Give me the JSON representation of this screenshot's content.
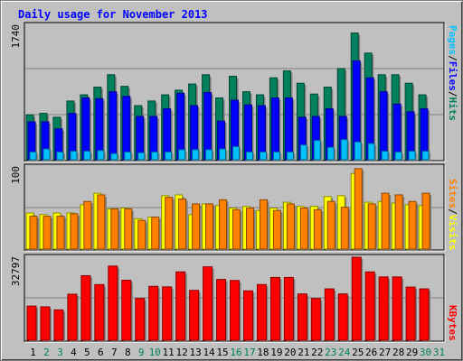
{
  "title": "Daily usage for November 2013",
  "colors": {
    "hits": "#00805c",
    "files": "#0000ff",
    "pages": "#00c0ff",
    "visits": "#ffff00",
    "sites": "#ff8000",
    "kbytes": "#ff0000",
    "weekday_label": "#000000",
    "weekend_label": "#00805c",
    "title": "#0000ff"
  },
  "chart_data": [
    {
      "type": "bar",
      "panel": "hits-files-pages",
      "categories": [
        "1",
        "2",
        "3",
        "4",
        "5",
        "6",
        "7",
        "8",
        "9",
        "10",
        "11",
        "12",
        "13",
        "14",
        "15",
        "16",
        "17",
        "18",
        "19",
        "20",
        "21",
        "22",
        "23",
        "24",
        "25",
        "26",
        "27",
        "28",
        "29",
        "30",
        "31"
      ],
      "weekend_days": [
        "2",
        "3",
        "9",
        "10",
        "16",
        "17",
        "23",
        "24",
        "30",
        "31"
      ],
      "ytick": "1740",
      "ylim": [
        0,
        1740
      ],
      "right_labels": [
        "Pages",
        "/",
        "Files",
        "/",
        "Hits"
      ],
      "series": [
        {
          "name": "Hits",
          "values": [
            580,
            600,
            550,
            760,
            840,
            940,
            1100,
            950,
            700,
            760,
            840,
            900,
            980,
            1100,
            800,
            1080,
            880,
            840,
            1060,
            1150,
            990,
            850,
            940,
            1180,
            1640,
            1380,
            1100,
            1100,
            990,
            840,
            0
          ]
        },
        {
          "name": "Files",
          "values": [
            490,
            490,
            400,
            600,
            800,
            790,
            880,
            820,
            560,
            560,
            660,
            860,
            700,
            870,
            500,
            770,
            710,
            700,
            800,
            800,
            550,
            560,
            660,
            560,
            1280,
            1060,
            880,
            720,
            620,
            660,
            0
          ]
        },
        {
          "name": "Pages",
          "values": [
            100,
            140,
            100,
            110,
            110,
            120,
            80,
            100,
            90,
            100,
            100,
            130,
            130,
            130,
            140,
            170,
            100,
            100,
            100,
            100,
            190,
            250,
            160,
            260,
            230,
            210,
            110,
            100,
            110,
            110,
            0
          ]
        }
      ]
    },
    {
      "type": "bar",
      "panel": "visits-sites",
      "categories": [
        "1",
        "2",
        "3",
        "4",
        "5",
        "6",
        "7",
        "8",
        "9",
        "10",
        "11",
        "12",
        "13",
        "14",
        "15",
        "16",
        "17",
        "18",
        "19",
        "20",
        "21",
        "22",
        "23",
        "24",
        "25",
        "26",
        "27",
        "28",
        "29",
        "30",
        "31"
      ],
      "ytick": "100",
      "ylim": [
        0,
        100
      ],
      "right_labels": [
        "Sites",
        "/",
        "Visits"
      ],
      "series": [
        {
          "name": "Visits",
          "values": [
            44,
            42,
            44,
            44,
            54,
            68,
            49,
            50,
            37,
            39,
            65,
            66,
            42,
            55,
            53,
            50,
            52,
            47,
            50,
            57,
            52,
            52,
            64,
            65,
            92,
            57,
            58,
            56,
            54,
            53,
            0
          ]
        },
        {
          "name": "Sites",
          "values": [
            40,
            40,
            40,
            43,
            58,
            66,
            49,
            49,
            35,
            39,
            63,
            61,
            55,
            55,
            60,
            48,
            50,
            60,
            47,
            55,
            50,
            48,
            58,
            51,
            98,
            55,
            68,
            66,
            58,
            68,
            0
          ]
        }
      ]
    },
    {
      "type": "bar",
      "panel": "kbytes",
      "categories": [
        "1",
        "2",
        "3",
        "4",
        "5",
        "6",
        "7",
        "8",
        "9",
        "10",
        "11",
        "12",
        "13",
        "14",
        "15",
        "16",
        "17",
        "18",
        "19",
        "20",
        "21",
        "22",
        "23",
        "24",
        "25",
        "26",
        "27",
        "28",
        "29",
        "30",
        "31"
      ],
      "ytick": "32797",
      "ylim": [
        0,
        32797
      ],
      "right_labels": [
        "KBytes"
      ],
      "series": [
        {
          "name": "KBytes",
          "values": [
            13500,
            13200,
            12000,
            18200,
            25500,
            22000,
            29300,
            23700,
            16500,
            21300,
            21100,
            27000,
            19700,
            29000,
            24000,
            23600,
            19500,
            22000,
            24800,
            24800,
            18300,
            16500,
            20300,
            18300,
            32797,
            27000,
            25000,
            25000,
            21000,
            20300,
            0
          ]
        }
      ]
    }
  ]
}
